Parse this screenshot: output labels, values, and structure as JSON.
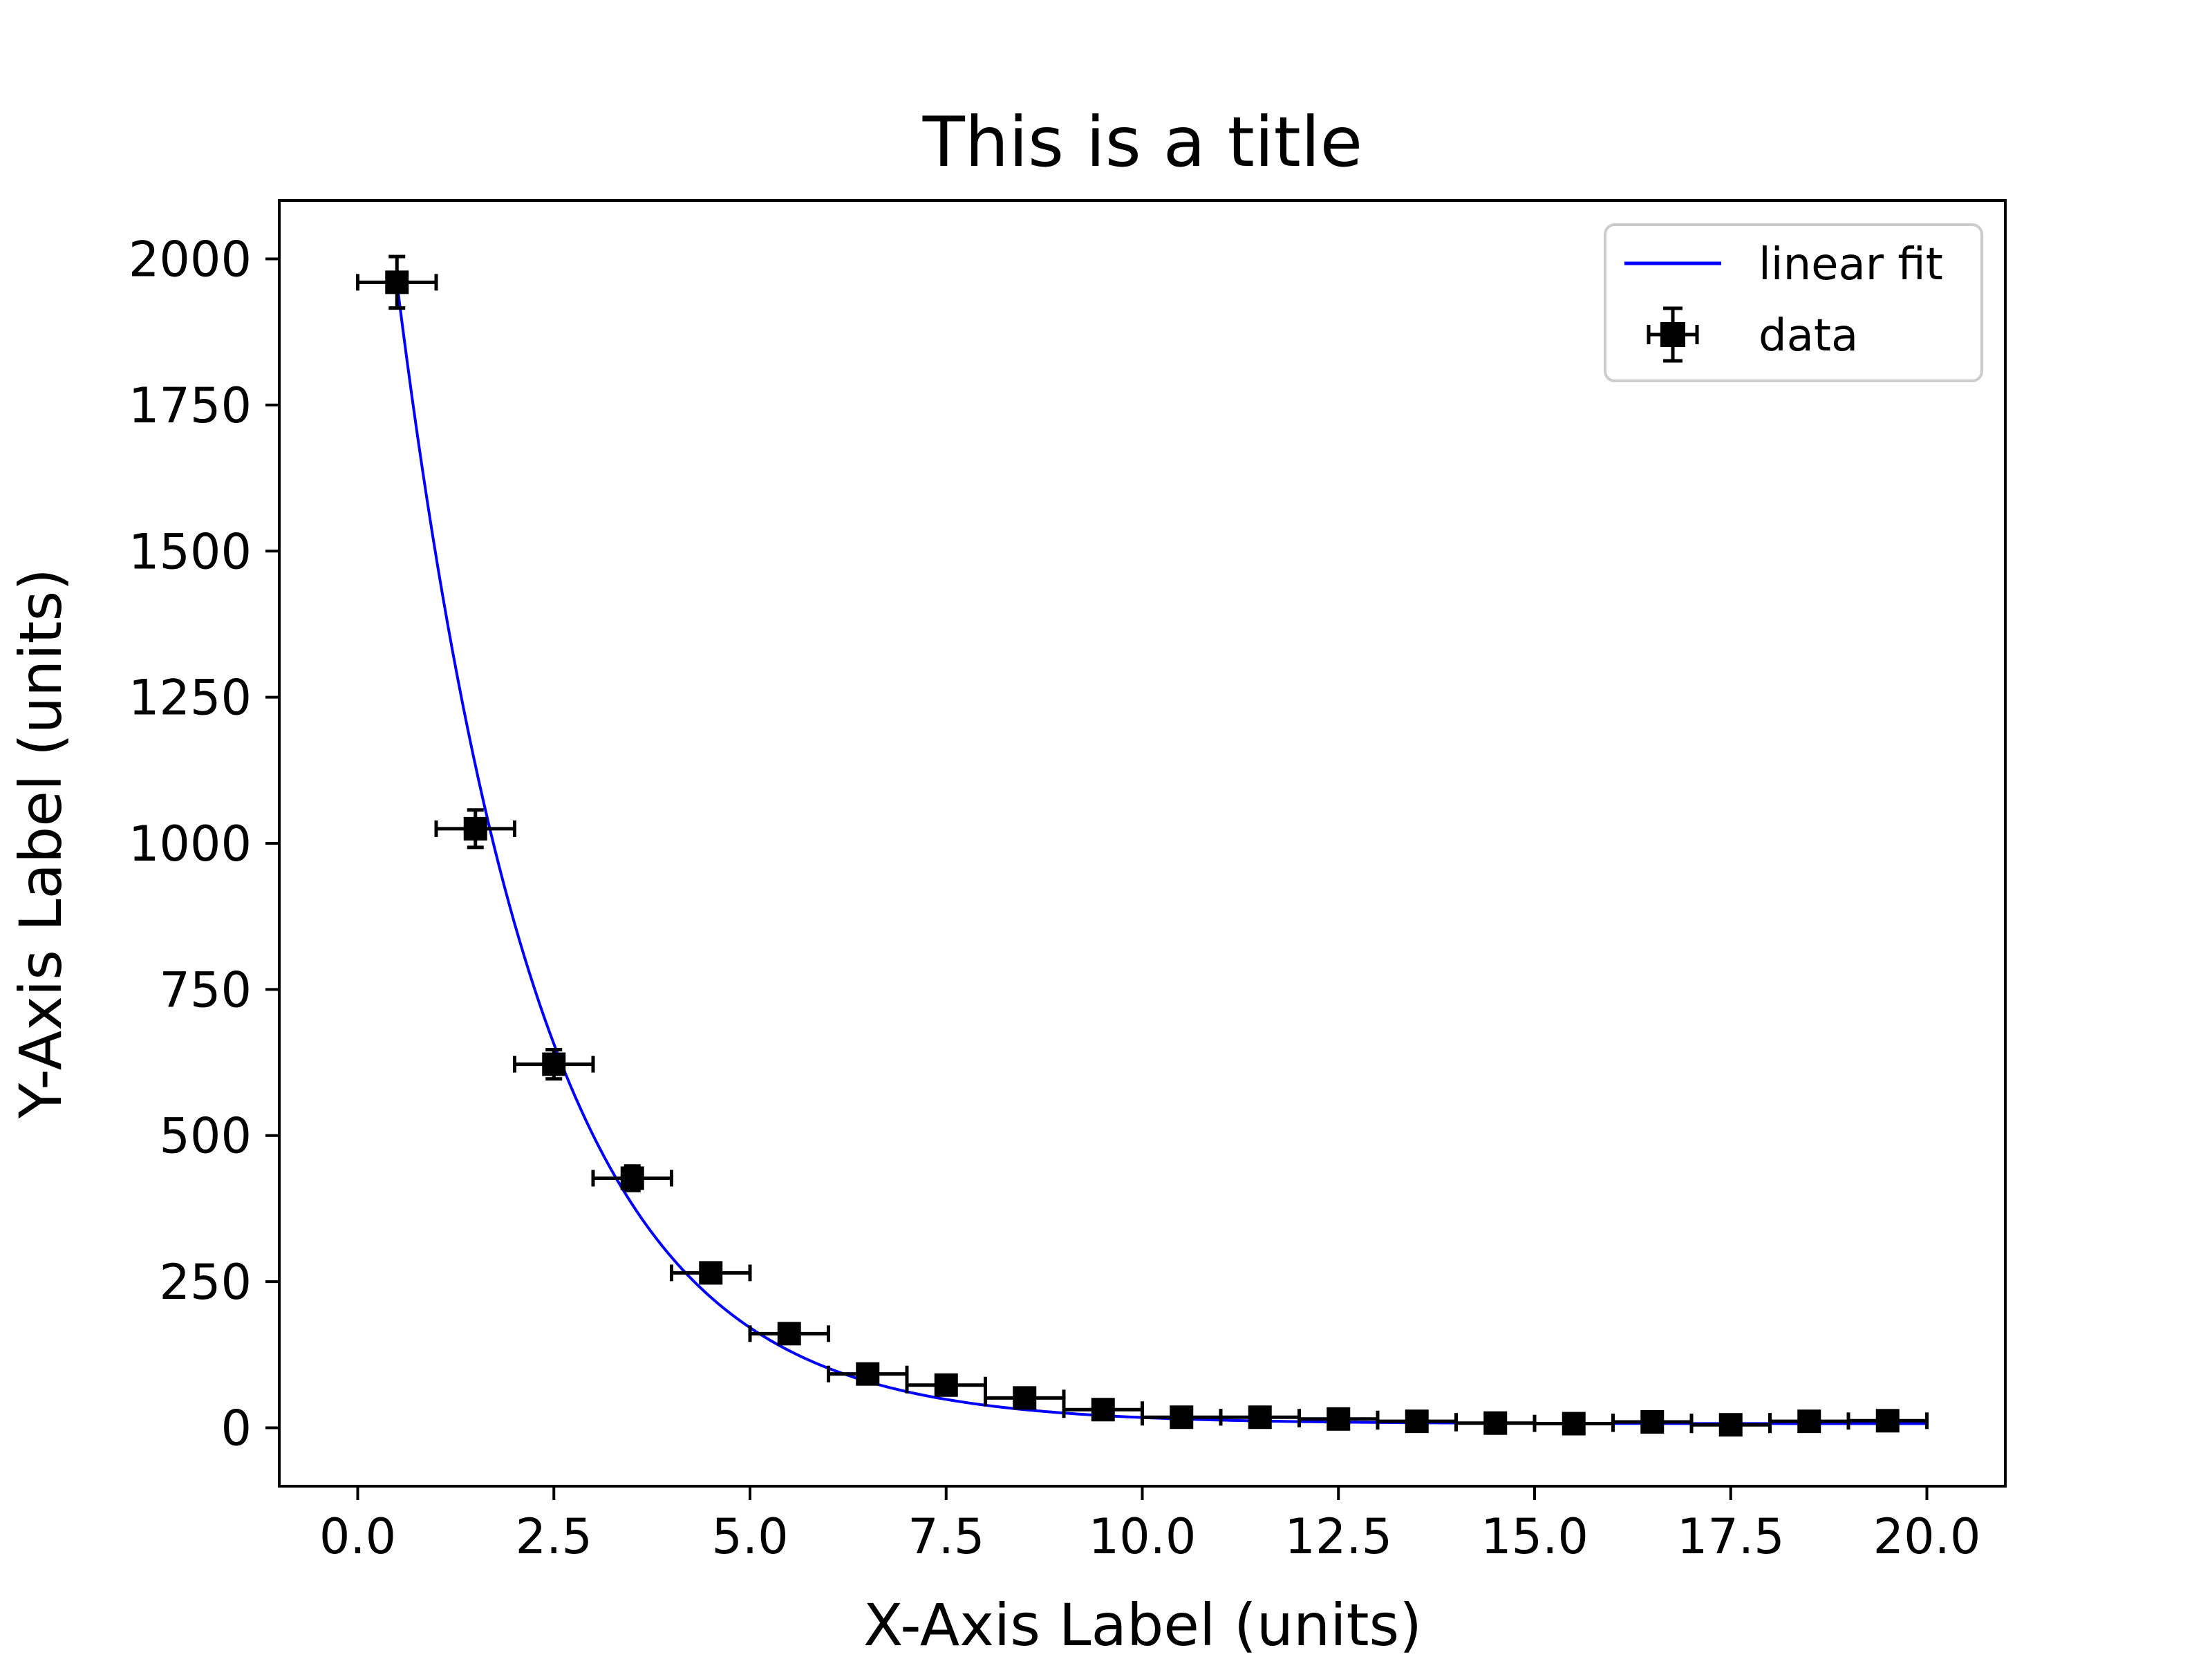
{
  "chart_data": {
    "type": "scatter",
    "title": "This is a title",
    "xlabel": "X-Axis Label (units)",
    "ylabel": "Y-Axis Label (units)",
    "xlim": [
      -1.0,
      21.0
    ],
    "ylim": [
      -100,
      2100
    ],
    "xticks": [
      0.0,
      2.5,
      5.0,
      7.5,
      10.0,
      12.5,
      15.0,
      17.5,
      20.0
    ],
    "xtick_labels": [
      "0.0",
      "2.5",
      "5.0",
      "7.5",
      "10.0",
      "12.5",
      "15.0",
      "17.5",
      "20.0"
    ],
    "yticks": [
      0,
      250,
      500,
      750,
      1000,
      1250,
      1500,
      1750,
      2000
    ],
    "ytick_labels": [
      "0",
      "250",
      "500",
      "750",
      "1000",
      "1250",
      "1500",
      "1750",
      "2000"
    ],
    "grid": false,
    "legend_position": "top-right",
    "series": [
      {
        "name": "linear fit",
        "kind": "line",
        "color": "#0000ff",
        "x_range": [
          0.5,
          20.0
        ],
        "model": {
          "form": "a*exp(-b*x)+c",
          "a": 2570,
          "b": 0.55,
          "c": 7
        }
      },
      {
        "name": "data",
        "kind": "errorbar",
        "color": "#000000",
        "marker": "square",
        "x": [
          0.5,
          1.5,
          2.5,
          3.5,
          4.5,
          5.5,
          6.5,
          7.5,
          8.5,
          9.5,
          10.5,
          11.5,
          12.5,
          13.5,
          14.5,
          15.5,
          16.5,
          17.5,
          18.5,
          19.5
        ],
        "y": [
          1960,
          1025,
          622,
          427,
          265,
          161,
          92,
          73,
          51,
          31,
          18,
          18,
          15,
          11,
          8,
          7,
          10,
          5,
          11,
          12
        ],
        "xerr": [
          0.5,
          0.5,
          0.5,
          0.5,
          0.5,
          0.5,
          0.5,
          0.5,
          0.5,
          0.5,
          0.5,
          0.5,
          0.5,
          0.5,
          0.5,
          0.5,
          0.5,
          0.5,
          0.5,
          0.5
        ],
        "yerr": [
          44,
          32,
          25,
          21,
          16,
          13,
          10,
          9,
          7,
          6,
          4,
          4,
          4,
          3,
          3,
          3,
          3,
          2,
          3,
          3
        ]
      }
    ]
  }
}
